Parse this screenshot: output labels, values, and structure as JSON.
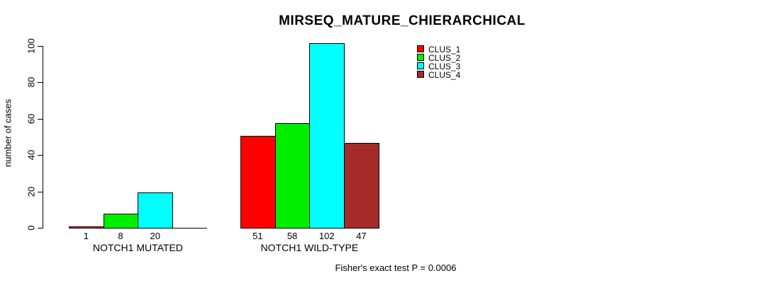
{
  "chart_data": {
    "type": "bar",
    "title": "MIRSEQ_MATURE_CHIERARCHICAL",
    "ylabel": "number of cases",
    "xlabel": "",
    "ylim": [
      0,
      100
    ],
    "yticks": [
      0,
      20,
      40,
      60,
      80,
      100
    ],
    "grid": false,
    "legend_position": "top-right",
    "categories": [
      "NOTCH1 MUTATED",
      "NOTCH1 WILD-TYPE"
    ],
    "series": [
      {
        "name": "CLUS_1",
        "color": "#FF0000",
        "values": [
          1,
          51
        ]
      },
      {
        "name": "CLUS_2",
        "color": "#00EE00",
        "values": [
          8,
          58
        ]
      },
      {
        "name": "CLUS_3",
        "color": "#00FFFF",
        "values": [
          20,
          102
        ]
      },
      {
        "name": "CLUS_4",
        "color": "#A52A2A",
        "values": [
          0,
          47
        ]
      }
    ],
    "bar_value_labels": [
      [
        "1",
        "8",
        "20",
        ""
      ],
      [
        "51",
        "58",
        "102",
        "47"
      ]
    ],
    "annotation": "Fisher's exact test P = 0.0006"
  }
}
